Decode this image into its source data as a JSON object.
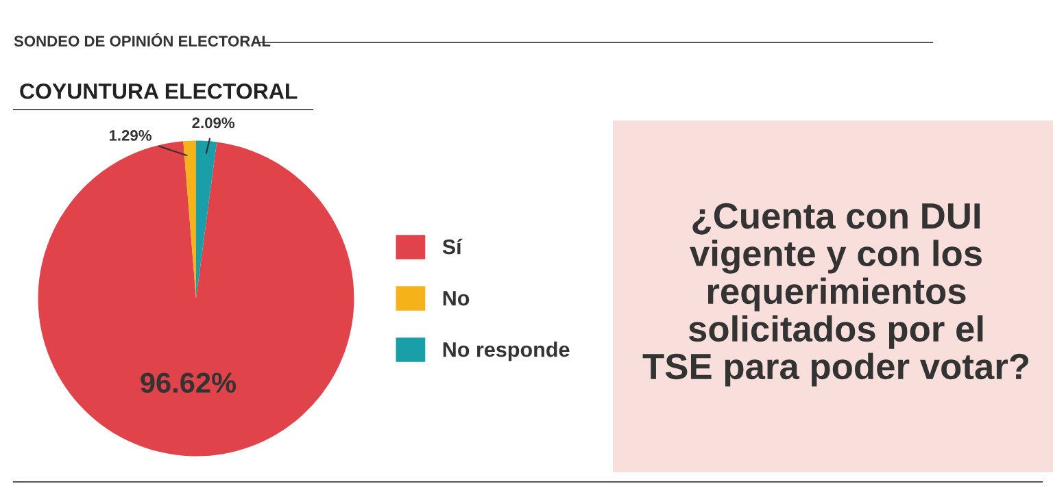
{
  "chart_data": {
    "type": "pie",
    "title": "SONDEO DE OPINIÓN ELECTORAL",
    "subtitle": "COYUNTURA ELECTORAL",
    "categories": [
      "Sí",
      "No",
      "No responde"
    ],
    "values": [
      96.62,
      1.29,
      2.09
    ],
    "colors": [
      "#e0434a",
      "#f5b21a",
      "#1a9ea8"
    ],
    "value_labels": [
      "96.62%",
      "1.29%",
      "2.09%"
    ],
    "legend": "right",
    "annotations": [
      "¿Cuenta con DUI\nvigente y con los\nrequerimientos\nsolicitados por el\nTSE para poder votar?"
    ]
  }
}
